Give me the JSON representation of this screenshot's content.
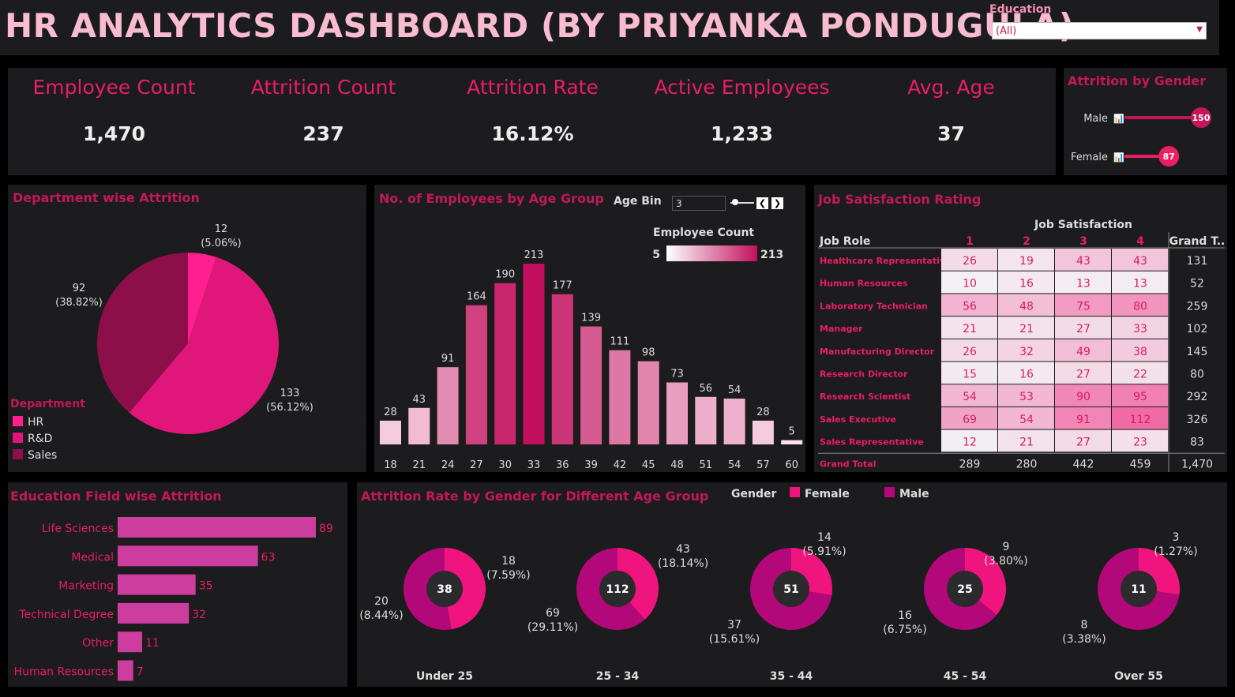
{
  "header": {
    "title": "HR ANALYTICS DASHBOARD (BY PRIYANKA PONDUGULA)",
    "education_label": "Education",
    "education_value": "(All)"
  },
  "kpis": [
    {
      "label": "Employee Count",
      "value": "1,470"
    },
    {
      "label": "Attrition Count",
      "value": "237"
    },
    {
      "label": "Attrition Rate",
      "value": "16.12%"
    },
    {
      "label": "Active Employees",
      "value": "1,233"
    },
    {
      "label": "Avg. Age",
      "value": "37"
    }
  ],
  "gender_attrition": {
    "title": "Attrition by Gender",
    "items": [
      {
        "label": "Male",
        "value": 150
      },
      {
        "label": "Female",
        "value": 87
      }
    ]
  },
  "chart_data": [
    {
      "id": "department",
      "type": "pie",
      "title": "Department wise Attrition",
      "legend_title": "Department",
      "slices": [
        {
          "label": "HR",
          "value": 12,
          "pct": "(5.06%)",
          "color": "#ff1f8e"
        },
        {
          "label": "R&D",
          "value": 133,
          "pct": "(56.12%)",
          "color": "#e0167b"
        },
        {
          "label": "Sales",
          "value": 92,
          "pct": "(38.82%)",
          "color": "#8c0f4a"
        }
      ]
    },
    {
      "id": "age_group",
      "type": "bar",
      "title": "No. of Employees by Age Group",
      "age_bin_label": "Age Bin",
      "age_bin_value": "3",
      "legend_title": "Employee Count",
      "color_range": [
        5,
        213
      ],
      "categories": [
        "18",
        "21",
        "24",
        "27",
        "30",
        "33",
        "36",
        "39",
        "42",
        "45",
        "48",
        "51",
        "54",
        "57",
        "60"
      ],
      "values": [
        28,
        43,
        91,
        164,
        190,
        213,
        177,
        139,
        111,
        98,
        73,
        56,
        54,
        28,
        5
      ]
    },
    {
      "id": "job_satisfaction",
      "type": "heatmap",
      "title": "Job Satisfaction Rating",
      "column_group": "Job Satisfaction",
      "row_header": "Job Role",
      "columns": [
        "1",
        "2",
        "3",
        "4"
      ],
      "total_header": "Grand T..",
      "rows": [
        {
          "role": "Healthcare Representative",
          "values": [
            26,
            19,
            43,
            43
          ],
          "total": "131"
        },
        {
          "role": "Human Resources",
          "values": [
            10,
            16,
            13,
            13
          ],
          "total": "52"
        },
        {
          "role": "Laboratory Technician",
          "values": [
            56,
            48,
            75,
            80
          ],
          "total": "259"
        },
        {
          "role": "Manager",
          "values": [
            21,
            21,
            27,
            33
          ],
          "total": "102"
        },
        {
          "role": "Manufacturing Director",
          "values": [
            26,
            32,
            49,
            38
          ],
          "total": "145"
        },
        {
          "role": "Research Director",
          "values": [
            15,
            16,
            27,
            22
          ],
          "total": "80"
        },
        {
          "role": "Research Scientist",
          "values": [
            54,
            53,
            90,
            95
          ],
          "total": "292"
        },
        {
          "role": "Sales Executive",
          "values": [
            69,
            54,
            91,
            112
          ],
          "total": "326"
        },
        {
          "role": "Sales Representative",
          "values": [
            12,
            21,
            27,
            23
          ],
          "total": "83"
        }
      ],
      "grand_total": {
        "label": "Grand Total",
        "values": [
          "289",
          "280",
          "442",
          "459"
        ],
        "total": "1,470"
      }
    },
    {
      "id": "education_field",
      "type": "bar",
      "orientation": "horizontal",
      "title": "Education Field wise Attrition",
      "categories": [
        "Life Sciences",
        "Medical",
        "Marketing",
        "Technical Degree",
        "Other",
        "Human Resources"
      ],
      "values": [
        89,
        63,
        35,
        32,
        11,
        7
      ]
    },
    {
      "id": "gender_age",
      "type": "pie",
      "title": "Attrition Rate by Gender for Different Age Group",
      "legend_title": "Gender",
      "series": [
        {
          "name": "Female",
          "color": "#f0157e"
        },
        {
          "name": "Male",
          "color": "#b3087a"
        }
      ],
      "groups": [
        {
          "label": "Under 25",
          "total": 38,
          "female": 18,
          "female_pct": "(7.59%)",
          "male": 20,
          "male_pct": "(8.44%)"
        },
        {
          "label": "25 - 34",
          "total": 112,
          "female": 43,
          "female_pct": "(18.14%)",
          "male": 69,
          "male_pct": "(29.11%)"
        },
        {
          "label": "35 - 44",
          "total": 51,
          "female": 14,
          "female_pct": "(5.91%)",
          "male": 37,
          "male_pct": "(15.61%)"
        },
        {
          "label": "45 - 54",
          "total": 25,
          "female": 9,
          "female_pct": "(3.80%)",
          "male": 16,
          "male_pct": "(6.75%)"
        },
        {
          "label": "Over 55",
          "total": 11,
          "female": 3,
          "female_pct": "(1.27%)",
          "male": 8,
          "male_pct": "(3.38%)"
        }
      ]
    }
  ]
}
